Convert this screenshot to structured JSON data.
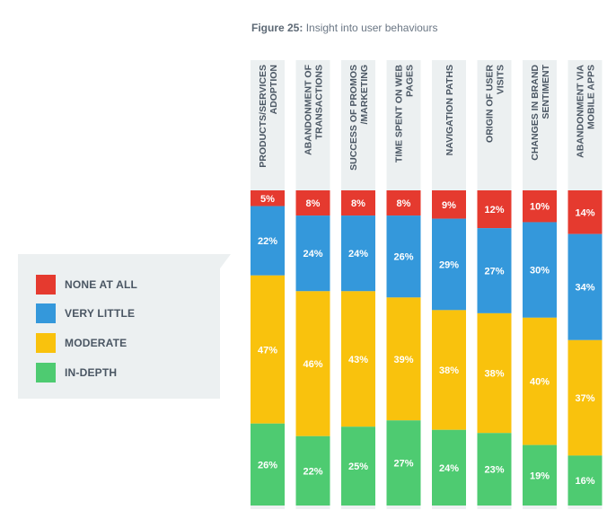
{
  "figure": {
    "label": "Figure 25:",
    "title": " Insight into user behaviours"
  },
  "legend": [
    {
      "key": "none",
      "label": "NONE AT ALL",
      "color": "#e53a2f"
    },
    {
      "key": "little",
      "label": "VERY LITTLE",
      "color": "#3498db"
    },
    {
      "key": "moderate",
      "label": "MODERATE",
      "color": "#f9c20d"
    },
    {
      "key": "indepth",
      "label": "IN-DEPTH",
      "color": "#4ecb71"
    }
  ],
  "chart_data": {
    "type": "bar",
    "stacked": true,
    "title": "Figure 25: Insight into user behaviours",
    "categories": [
      [
        "PRODUCTS/SERVICES",
        "ADOPTION"
      ],
      [
        "ABANDONMENT OF",
        "TRANSACTIONS"
      ],
      [
        "SUCCESS OF PROMOS",
        "/MARKETING"
      ],
      [
        "TIME SPENT ON WEB",
        "PAGES"
      ],
      [
        "NAVIGATION PATHS"
      ],
      [
        "ORIGIN OF USER",
        "VISITS"
      ],
      [
        "CHANGES IN BRAND",
        "SENTIMENT"
      ],
      [
        "ABANDONMENT VIA",
        "MOBILE APPS"
      ]
    ],
    "series": [
      {
        "name": "NONE AT ALL",
        "color": "#e53a2f",
        "values": [
          5,
          8,
          8,
          8,
          9,
          12,
          10,
          14
        ]
      },
      {
        "name": "VERY LITTLE",
        "color": "#3498db",
        "values": [
          22,
          24,
          24,
          26,
          29,
          27,
          30,
          34
        ]
      },
      {
        "name": "MODERATE",
        "color": "#f9c20d",
        "values": [
          47,
          46,
          43,
          39,
          38,
          38,
          40,
          37
        ]
      },
      {
        "name": "IN-DEPTH",
        "color": "#4ecb71",
        "values": [
          26,
          22,
          25,
          27,
          24,
          23,
          19,
          16
        ]
      }
    ],
    "value_suffix": "%",
    "label_color": "#ffffff",
    "column_background": "#ecf0f1",
    "category_label_color": "#4a5663",
    "legend_position": "left"
  }
}
